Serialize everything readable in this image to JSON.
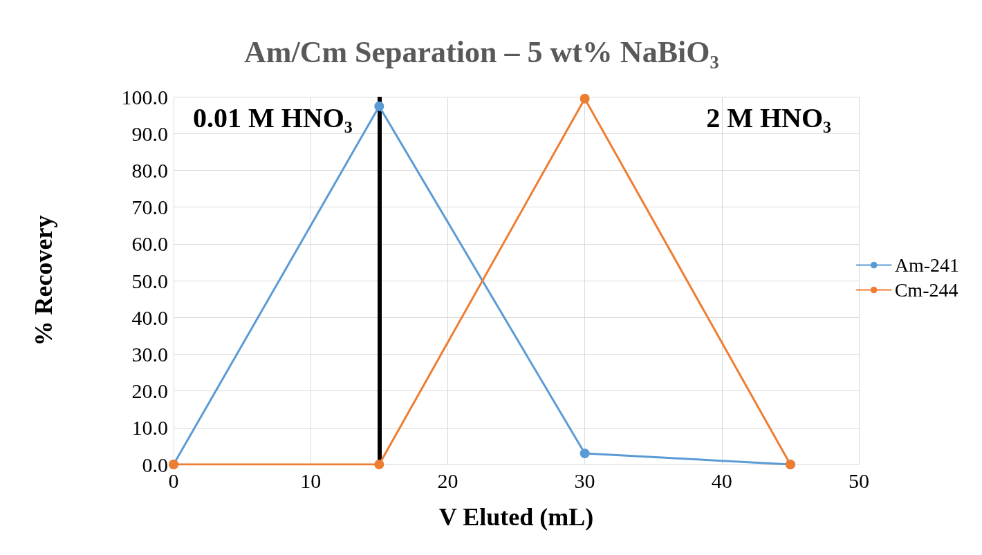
{
  "chart_data": {
    "type": "line",
    "title": "Am/Cm Separation – 5 wt% NaBiO₃",
    "xlabel": "V Eluted (mL)",
    "ylabel": "% Recovery",
    "annotations": [
      "0.01 M HNO₃",
      "2 M HNO₃"
    ],
    "series": [
      {
        "name": "Am-241",
        "color": "#5b9bd5",
        "x": [
          0,
          15,
          30,
          45
        ],
        "values": [
          0,
          97.4,
          3,
          0
        ]
      },
      {
        "name": "Cm-244",
        "color": "#ed7d31",
        "x": [
          0,
          15,
          30,
          45
        ],
        "values": [
          0,
          0,
          99.5,
          0
        ]
      }
    ],
    "xlim": [
      0,
      50
    ],
    "xticks": [
      0,
      10,
      20,
      30,
      40,
      50
    ],
    "ylim": [
      0,
      100
    ],
    "yticks": [
      {
        "value": 0,
        "label": "0.0"
      },
      {
        "value": 10,
        "label": "10.0"
      },
      {
        "value": 20,
        "label": "20.0"
      },
      {
        "value": 30,
        "label": "30.0"
      },
      {
        "value": 40,
        "label": "40.0"
      },
      {
        "value": 50,
        "label": "50.0"
      },
      {
        "value": 60,
        "label": "60.0"
      },
      {
        "value": 70,
        "label": "70.0"
      },
      {
        "value": 80,
        "label": "80.0"
      },
      {
        "value": 90,
        "label": "90.0"
      },
      {
        "value": 100,
        "label": "100.0"
      }
    ],
    "ref_lines": [
      {
        "axis": "x",
        "value": 15,
        "color": "#000000"
      }
    ],
    "grid": true,
    "legend": "right",
    "marker": "circle",
    "line_style": "solid"
  }
}
